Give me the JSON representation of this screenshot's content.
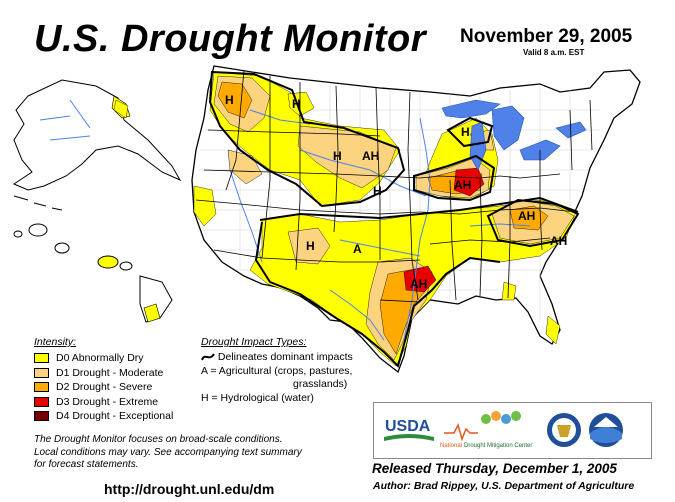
{
  "header": {
    "title": "U.S. Drought Monitor",
    "date": "November 29, 2005",
    "valid": "Valid 8 a.m. EST"
  },
  "legend": {
    "heading": "Intensity:",
    "items": [
      {
        "label": "D0 Abnormally Dry",
        "color": "#ffff00"
      },
      {
        "label": "D1 Drought - Moderate",
        "color": "#fcd37f"
      },
      {
        "label": "D2 Drought - Severe",
        "color": "#ffaa00"
      },
      {
        "label": "D3 Drought - Extreme",
        "color": "#e60000"
      },
      {
        "label": "D4 Drought - Exceptional",
        "color": "#730000"
      }
    ]
  },
  "impacts": {
    "heading": "Drought Impact Types:",
    "line_symbol": "Delineates dominant impacts",
    "agricultural": "A = Agricultural (crops, pastures,",
    "agricultural_cont": "grasslands)",
    "hydrological": "H = Hydrological (water)"
  },
  "map_labels": {
    "h_oregon": "H",
    "h_montana": "H",
    "h_dakota": "H",
    "ah_dakota": "AH",
    "h_nebraska": "H",
    "h_michigan": "H",
    "ah_illinois": "AH",
    "ah_virginia": "AH",
    "ah_carolina": "AH",
    "h_texas": "H",
    "a_oklahoma": "A",
    "ah_arkansas": "AH"
  },
  "focus": {
    "line1": "The Drought Monitor focuses on broad-scale conditions.",
    "line2": "Local conditions may vary.  See accompanying text summary",
    "line3": "for forecast statements."
  },
  "url": "http://drought.unl.edu/dm",
  "logos": {
    "usda": "USDA",
    "ndmc_national": "National",
    "ndmc_rest": "Drought Mitigation Center"
  },
  "released": "Released Thursday, December 1, 2005",
  "author": "Author:  Brad Rippey, U.S. Department of Agriculture",
  "colors": {
    "water": "#4f81e8",
    "state_line": "#000000",
    "county_line": "#bdbdbd"
  }
}
